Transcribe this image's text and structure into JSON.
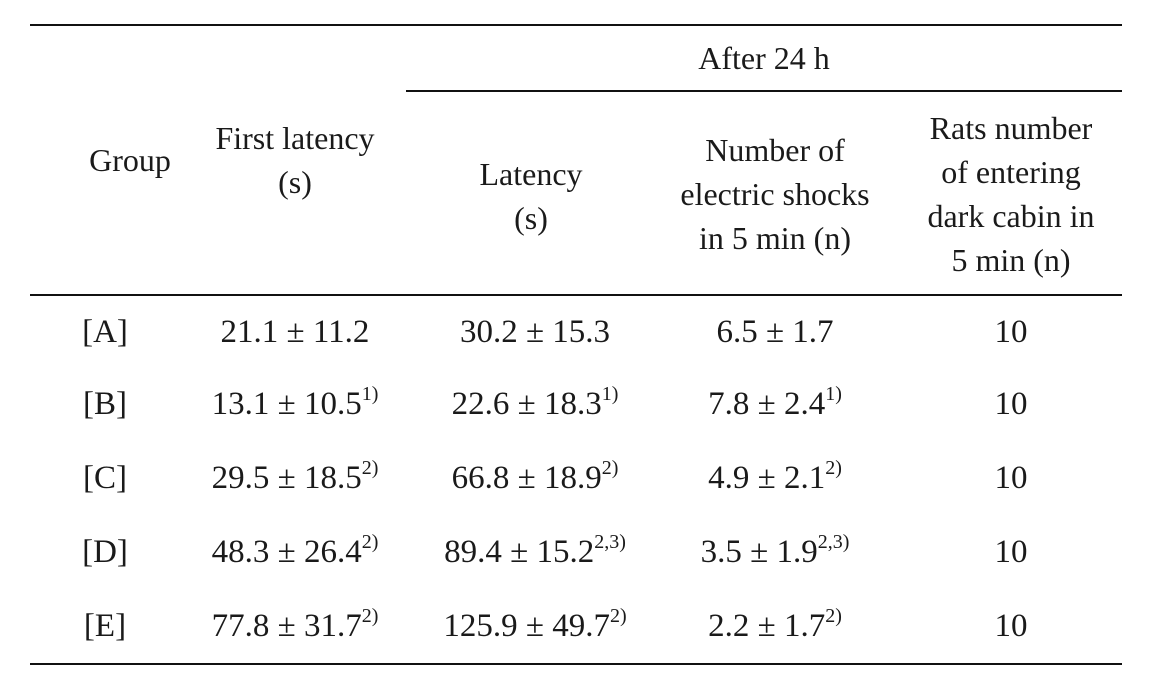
{
  "table": {
    "spanning_header": "After 24 h",
    "headers": {
      "group": "Group",
      "first_latency": [
        "First latency",
        "(s)"
      ],
      "latency": [
        "Latency",
        "(s)"
      ],
      "shocks": [
        "Number of",
        "electric shocks",
        "in 5 min (n)"
      ],
      "rats": [
        "Rats number",
        "of entering",
        "dark cabin in",
        "5 min (n)"
      ]
    },
    "rows": [
      {
        "group": "[A]",
        "first": "21.1 ± 11.2",
        "first_sup": "",
        "lat": "30.2 ± 15.3",
        "lat_sup": "",
        "shock": "6.5 ± 1.7",
        "shock_sup": "",
        "rats": "10"
      },
      {
        "group": "[B]",
        "first": "13.1 ± 10.5",
        "first_sup": "1)",
        "lat": "22.6 ± 18.3",
        "lat_sup": "1)",
        "shock": "7.8 ± 2.4",
        "shock_sup": "1)",
        "rats": "10"
      },
      {
        "group": "[C]",
        "first": "29.5 ± 18.5",
        "first_sup": "2)",
        "lat": "66.8 ± 18.9",
        "lat_sup": "2)",
        "shock": "4.9 ± 2.1",
        "shock_sup": "2)",
        "rats": "10"
      },
      {
        "group": "[D]",
        "first": "48.3 ± 26.4",
        "first_sup": "2)",
        "lat": "89.4 ± 15.2",
        "lat_sup": "2,3)",
        "shock": "3.5 ± 1.9",
        "shock_sup": "2,3)",
        "rats": "10"
      },
      {
        "group": "[E]",
        "first": "77.8 ± 31.7",
        "first_sup": "2)",
        "lat": "125.9 ± 49.7",
        "lat_sup": "2)",
        "shock": "2.2 ± 1.7",
        "shock_sup": "2)",
        "rats": "10"
      }
    ]
  }
}
